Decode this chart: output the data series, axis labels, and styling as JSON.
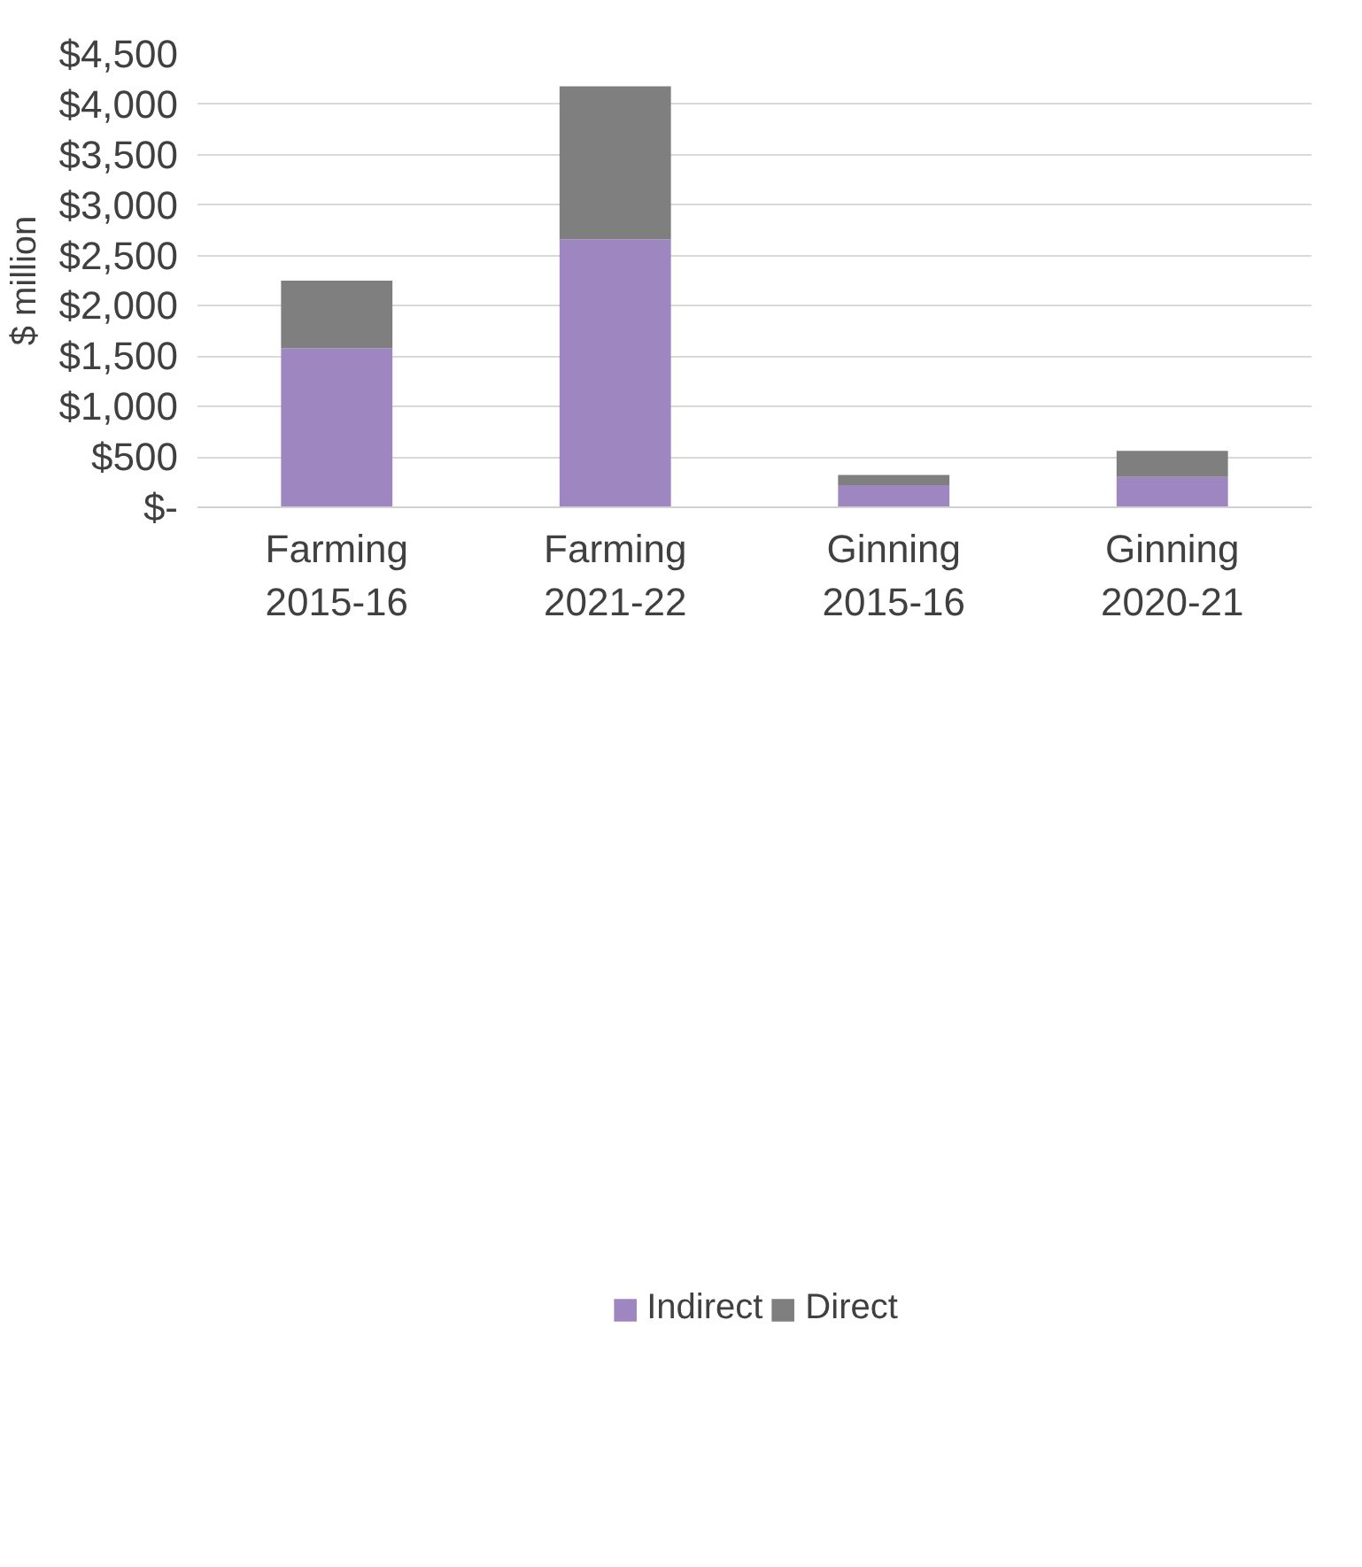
{
  "chart_data": {
    "type": "bar",
    "stacked": true,
    "ylabel": "$ million",
    "categories": [
      "Farming 2015-16",
      "Farming 2021-22",
      "Ginning 2015-16",
      "Ginning 2020-21"
    ],
    "series": [
      {
        "name": "Indirect",
        "color": "#9e86c0",
        "values": [
          1580,
          2660,
          220,
          300
        ]
      },
      {
        "name": "Direct",
        "color": "#7f7f7f",
        "values": [
          670,
          1520,
          100,
          260
        ]
      }
    ],
    "ylim": [
      0,
      4500
    ],
    "yticks": [
      {
        "value": 0,
        "label": "$-"
      },
      {
        "value": 500,
        "label": "$500"
      },
      {
        "value": 1000,
        "label": "$1,000"
      },
      {
        "value": 1500,
        "label": "$1,500"
      },
      {
        "value": 2000,
        "label": "$2,000"
      },
      {
        "value": 2500,
        "label": "$2,500"
      },
      {
        "value": 3000,
        "label": "$3,000"
      },
      {
        "value": 3500,
        "label": "$3,500"
      },
      {
        "value": 4000,
        "label": "$4,000"
      },
      {
        "value": 4500,
        "label": "$4,500"
      }
    ],
    "grid": "y",
    "legend": "bottom"
  }
}
